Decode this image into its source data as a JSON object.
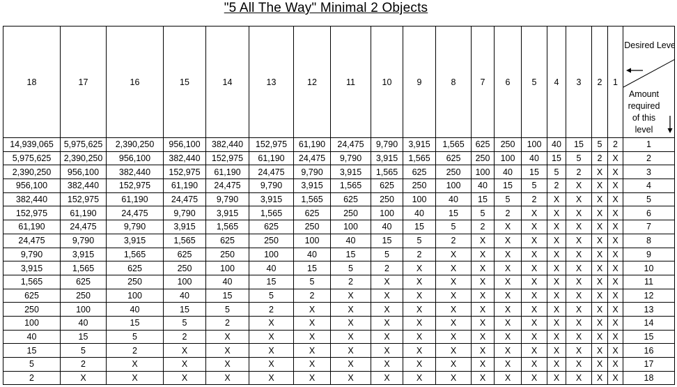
{
  "title": "\"5 All The Way\"  Minimal 2 Objects",
  "header": {
    "levels": [
      "18",
      "17",
      "16",
      "15",
      "14",
      "13",
      "12",
      "11",
      "10",
      "9",
      "8",
      "7",
      "6",
      "5",
      "4",
      "3",
      "2",
      "1"
    ],
    "corner_top": "Desired Level",
    "corner_bottom": "Amount required of this level",
    "corner_left_arrow_icon": "arrow-left-icon",
    "corner_down_arrow_icon": "arrow-down-icon"
  },
  "rows": [
    {
      "level": "1",
      "cells": [
        "14,939,065",
        "5,975,625",
        "2,390,250",
        "956,100",
        "382,440",
        "152,975",
        "61,190",
        "24,475",
        "9,790",
        "3,915",
        "1,565",
        "625",
        "250",
        "100",
        "40",
        "15",
        "5",
        "2"
      ]
    },
    {
      "level": "2",
      "cells": [
        "5,975,625",
        "2,390,250",
        "956,100",
        "382,440",
        "152,975",
        "61,190",
        "24,475",
        "9,790",
        "3,915",
        "1,565",
        "625",
        "250",
        "100",
        "40",
        "15",
        "5",
        "2",
        "X"
      ]
    },
    {
      "level": "3",
      "cells": [
        "2,390,250",
        "956,100",
        "382,440",
        "152,975",
        "61,190",
        "24,475",
        "9,790",
        "3,915",
        "1,565",
        "625",
        "250",
        "100",
        "40",
        "15",
        "5",
        "2",
        "X",
        "X"
      ]
    },
    {
      "level": "4",
      "cells": [
        "956,100",
        "382,440",
        "152,975",
        "61,190",
        "24,475",
        "9,790",
        "3,915",
        "1,565",
        "625",
        "250",
        "100",
        "40",
        "15",
        "5",
        "2",
        "X",
        "X",
        "X"
      ]
    },
    {
      "level": "5",
      "cells": [
        "382,440",
        "152,975",
        "61,190",
        "24,475",
        "9,790",
        "3,915",
        "1,565",
        "625",
        "250",
        "100",
        "40",
        "15",
        "5",
        "2",
        "X",
        "X",
        "X",
        "X"
      ]
    },
    {
      "level": "6",
      "cells": [
        "152,975",
        "61,190",
        "24,475",
        "9,790",
        "3,915",
        "1,565",
        "625",
        "250",
        "100",
        "40",
        "15",
        "5",
        "2",
        "X",
        "X",
        "X",
        "X",
        "X"
      ]
    },
    {
      "level": "7",
      "cells": [
        "61,190",
        "24,475",
        "9,790",
        "3,915",
        "1,565",
        "625",
        "250",
        "100",
        "40",
        "15",
        "5",
        "2",
        "X",
        "X",
        "X",
        "X",
        "X",
        "X"
      ]
    },
    {
      "level": "8",
      "cells": [
        "24,475",
        "9,790",
        "3,915",
        "1,565",
        "625",
        "250",
        "100",
        "40",
        "15",
        "5",
        "2",
        "X",
        "X",
        "X",
        "X",
        "X",
        "X",
        "X"
      ]
    },
    {
      "level": "9",
      "cells": [
        "9,790",
        "3,915",
        "1,565",
        "625",
        "250",
        "100",
        "40",
        "15",
        "5",
        "2",
        "X",
        "X",
        "X",
        "X",
        "X",
        "X",
        "X",
        "X"
      ]
    },
    {
      "level": "10",
      "cells": [
        "3,915",
        "1,565",
        "625",
        "250",
        "100",
        "40",
        "15",
        "5",
        "2",
        "X",
        "X",
        "X",
        "X",
        "X",
        "X",
        "X",
        "X",
        "X"
      ]
    },
    {
      "level": "11",
      "cells": [
        "1,565",
        "625",
        "250",
        "100",
        "40",
        "15",
        "5",
        "2",
        "X",
        "X",
        "X",
        "X",
        "X",
        "X",
        "X",
        "X",
        "X",
        "X"
      ]
    },
    {
      "level": "12",
      "cells": [
        "625",
        "250",
        "100",
        "40",
        "15",
        "5",
        "2",
        "X",
        "X",
        "X",
        "X",
        "X",
        "X",
        "X",
        "X",
        "X",
        "X",
        "X"
      ]
    },
    {
      "level": "13",
      "cells": [
        "250",
        "100",
        "40",
        "15",
        "5",
        "2",
        "X",
        "X",
        "X",
        "X",
        "X",
        "X",
        "X",
        "X",
        "X",
        "X",
        "X",
        "X"
      ]
    },
    {
      "level": "14",
      "cells": [
        "100",
        "40",
        "15",
        "5",
        "2",
        "X",
        "X",
        "X",
        "X",
        "X",
        "X",
        "X",
        "X",
        "X",
        "X",
        "X",
        "X",
        "X"
      ]
    },
    {
      "level": "15",
      "cells": [
        "40",
        "15",
        "5",
        "2",
        "X",
        "X",
        "X",
        "X",
        "X",
        "X",
        "X",
        "X",
        "X",
        "X",
        "X",
        "X",
        "X",
        "X"
      ]
    },
    {
      "level": "16",
      "cells": [
        "15",
        "5",
        "2",
        "X",
        "X",
        "X",
        "X",
        "X",
        "X",
        "X",
        "X",
        "X",
        "X",
        "X",
        "X",
        "X",
        "X",
        "X"
      ]
    },
    {
      "level": "17",
      "cells": [
        "5",
        "2",
        "X",
        "X",
        "X",
        "X",
        "X",
        "X",
        "X",
        "X",
        "X",
        "X",
        "X",
        "X",
        "X",
        "X",
        "X",
        "X"
      ]
    },
    {
      "level": "18",
      "cells": [
        "2",
        "X",
        "X",
        "X",
        "X",
        "X",
        "X",
        "X",
        "X",
        "X",
        "X",
        "X",
        "X",
        "X",
        "X",
        "X",
        "X",
        "X"
      ]
    }
  ]
}
